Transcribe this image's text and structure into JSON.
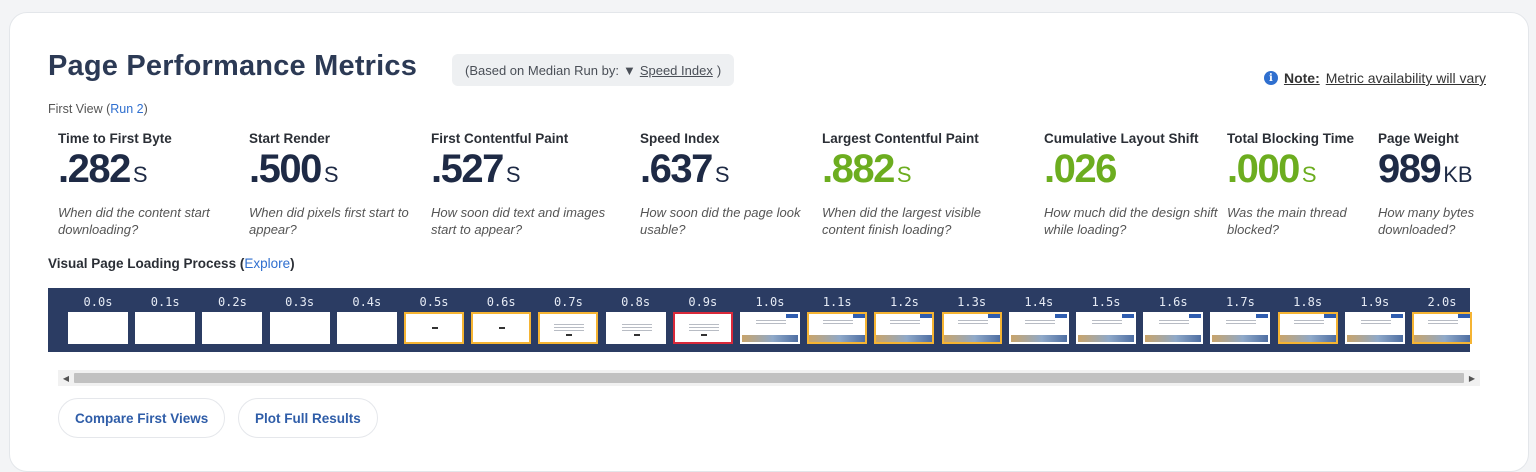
{
  "header": {
    "title": "Page Performance Metrics",
    "median_prefix": "(Based on Median Run by:",
    "median_arrow": "▼",
    "median_link": "Speed Index",
    "median_suffix": ")",
    "note_bold": "Note:",
    "note_text": "Metric availability will vary",
    "first_view_prefix": "First View (",
    "first_view_link": "Run 2",
    "first_view_suffix": ")"
  },
  "metrics": [
    {
      "label": "Time to First Byte",
      "value": ".282",
      "unit": "S",
      "desc": "When did the content start downloading?",
      "status": "neutral"
    },
    {
      "label": "Start Render",
      "value": ".500",
      "unit": "S",
      "desc": "When did pixels first start to appear?",
      "status": "neutral"
    },
    {
      "label": "First Contentful Paint",
      "value": ".527",
      "unit": "S",
      "desc": "How soon did text and images start to appear?",
      "status": "neutral"
    },
    {
      "label": "Speed Index",
      "value": ".637",
      "unit": "S",
      "desc": "How soon did the page look usable?",
      "status": "neutral"
    },
    {
      "label": "Largest Contentful Paint",
      "value": ".882",
      "unit": "S",
      "desc": "When did the largest visible content finish loading?",
      "status": "good"
    },
    {
      "label": "Cumulative Layout Shift",
      "value": ".026",
      "unit": "",
      "desc": "How much did the design shift while loading?",
      "status": "good"
    },
    {
      "label": "Total Blocking Time",
      "value": ".000",
      "unit": "S",
      "desc": "Was the main thread blocked?",
      "status": "good"
    },
    {
      "label": "Page Weight",
      "value": "989",
      "unit": "KB",
      "desc": "How many bytes downloaded?",
      "status": "neutral"
    }
  ],
  "visual": {
    "heading": "Visual Page Loading Process",
    "explore_prefix": " (",
    "explore_link": "Explore",
    "explore_suffix": ")"
  },
  "filmstrip": [
    {
      "time": "0.0s",
      "state": "blank"
    },
    {
      "time": "0.1s",
      "state": "blank"
    },
    {
      "time": "0.2s",
      "state": "blank"
    },
    {
      "time": "0.3s",
      "state": "blank"
    },
    {
      "time": "0.4s",
      "state": "blank"
    },
    {
      "time": "0.5s",
      "state": "changed",
      "content": "dot"
    },
    {
      "time": "0.6s",
      "state": "changed",
      "content": "dot"
    },
    {
      "time": "0.7s",
      "state": "changed",
      "content": "text"
    },
    {
      "time": "0.8s",
      "state": "same",
      "content": "text"
    },
    {
      "time": "0.9s",
      "state": "key",
      "content": "text"
    },
    {
      "time": "1.0s",
      "state": "same",
      "content": "hero"
    },
    {
      "time": "1.1s",
      "state": "changed",
      "content": "hero"
    },
    {
      "time": "1.2s",
      "state": "changed",
      "content": "hero"
    },
    {
      "time": "1.3s",
      "state": "changed",
      "content": "hero"
    },
    {
      "time": "1.4s",
      "state": "same",
      "content": "hero"
    },
    {
      "time": "1.5s",
      "state": "same",
      "content": "hero"
    },
    {
      "time": "1.6s",
      "state": "same",
      "content": "hero"
    },
    {
      "time": "1.7s",
      "state": "same",
      "content": "hero"
    },
    {
      "time": "1.8s",
      "state": "changed",
      "content": "hero"
    },
    {
      "time": "1.9s",
      "state": "same",
      "content": "hero"
    },
    {
      "time": "2.0s",
      "state": "changed",
      "content": "hero"
    }
  ],
  "buttons": {
    "compare": "Compare First Views",
    "plot": "Plot Full Results"
  },
  "colors": {
    "title": "#2c3a55",
    "good": "#6cad1f",
    "link": "#2f6fcf",
    "filmstrip_bg": "#2b3c63",
    "changed_border": "#f5b433",
    "key_border": "#d9293a"
  }
}
